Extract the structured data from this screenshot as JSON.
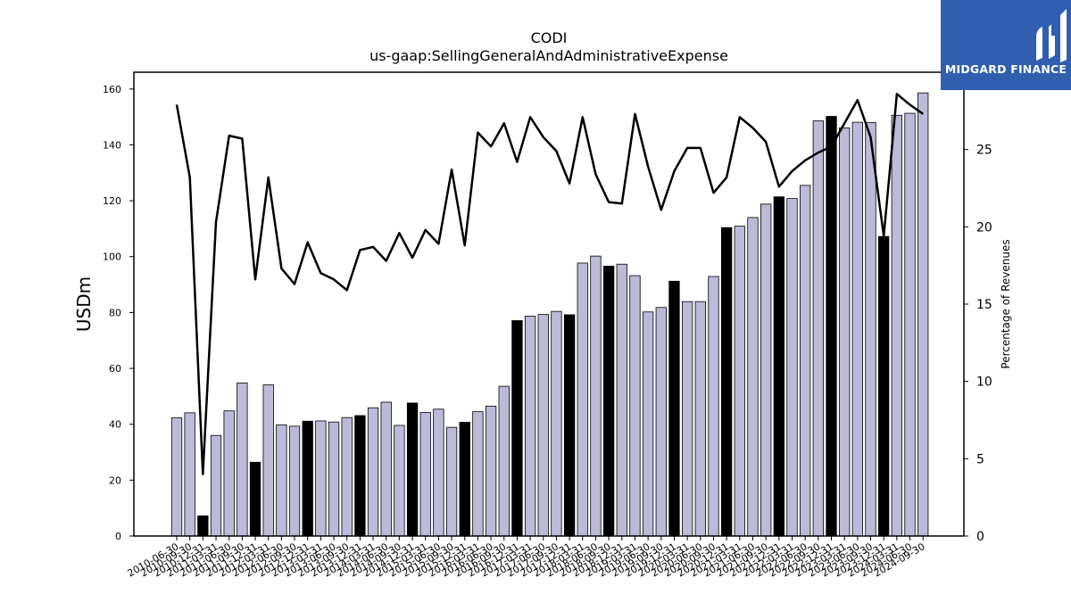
{
  "header": {
    "title": "CODI",
    "subtitle": "us-gaap:SellingGeneralAndAdministrativeExpense"
  },
  "brand": {
    "name": "MIDGARD FINANCE",
    "color": "#2f5fae",
    "icon": "midgard-logo-icon"
  },
  "colors": {
    "bar_normal": "#bcbad9",
    "bar_highlight": "#000000",
    "line": "#000000"
  },
  "chart_data": {
    "type": "bar",
    "title": "CODI",
    "subtitle": "us-gaap:SellingGeneralAndAdministrativeExpense",
    "ylabel": "USDm",
    "y2label": "Percentage of Revenues",
    "ylim": [
      0,
      166
    ],
    "y2lim": [
      0,
      30
    ],
    "yticks": [
      0,
      20,
      40,
      60,
      80,
      100,
      120,
      140,
      160
    ],
    "y2ticks": [
      0,
      5,
      10,
      15,
      20,
      25
    ],
    "categories": [
      "2010-06-30",
      "2010-09-30",
      "2010-12-31",
      "2011-03-31",
      "2011-06-30",
      "2011-09-30",
      "2011-12-31",
      "2012-03-31",
      "2012-06-30",
      "2012-09-30",
      "2012-12-31",
      "2013-03-31",
      "2013-06-30",
      "2013-09-30",
      "2013-12-31",
      "2014-03-31",
      "2014-06-30",
      "2014-09-30",
      "2014-12-31",
      "2015-03-31",
      "2015-06-30",
      "2015-09-30",
      "2015-12-31",
      "2016-03-31",
      "2016-06-30",
      "2016-09-30",
      "2016-12-31",
      "2017-03-31",
      "2017-06-30",
      "2017-09-30",
      "2017-12-31",
      "2018-03-31",
      "2018-06-30",
      "2018-09-30",
      "2018-12-31",
      "2019-03-31",
      "2019-06-30",
      "2019-09-30",
      "2019-12-31",
      "2020-03-31",
      "2020-06-30",
      "2020-09-30",
      "2020-12-31",
      "2021-03-31",
      "2021-06-30",
      "2021-09-30",
      "2021-12-31",
      "2022-03-31",
      "2022-06-30",
      "2022-09-30",
      "2022-12-31",
      "2023-03-31",
      "2023-06-30",
      "2023-09-30",
      "2023-12-31",
      "2024-03-31",
      "2024-06-30",
      "2024-09-30"
    ],
    "tick_labels": [
      "2010-06-30",
      "2010-09-30",
      "2010-12-31",
      "2011-03-31",
      "2011-06-30",
      "2011-09-30",
      "2011-12-31",
      "2012-03-31",
      "2012-06-30",
      "2012-09-30",
      "2012-12-31",
      "2013-03-31",
      "2013-06-30",
      "2013-09-30",
      "2013-12-31",
      "2014-03-31",
      "2014-06-30",
      "2014-09-30",
      "2014-12-31",
      "2015-03-31",
      "2015-06-30",
      "2015-09-30",
      "2015-12-31",
      "2016-03-31",
      "2016-06-30",
      "2016-09-30",
      "2016-12-31",
      "2017-03-31",
      "2017-06-30",
      "2017-09-30",
      "2017-12-31",
      "2018-03-31",
      "2018-06-30",
      "2018-09-30",
      "2018-12-31",
      "2019-03-31",
      "2019-06-30",
      "2019-09-30",
      "2019-12-31",
      "2020-03-31",
      "2020-06-30",
      "2020-09-30",
      "2020-12-31",
      "2021-03-31",
      "2021-06-30",
      "2021-09-30",
      "2021-12-31",
      "2022-03-31",
      "2022-06-30",
      "2022-09-30",
      "2022-12-31",
      "2023-03-31",
      "2023-06-30",
      "2023-09-30",
      "2023-12-31",
      "2024-03-31",
      "2024-06-30",
      "2024-09-30"
    ],
    "series": [
      {
        "type": "bar",
        "axis": "left",
        "values": [
          42.3,
          44.1,
          7.2,
          36.0,
          44.8,
          54.8,
          26.4,
          54.1,
          39.8,
          39.3,
          41.1,
          41.2,
          40.8,
          42.4,
          43.1,
          45.9,
          47.9,
          39.6,
          47.6,
          44.2,
          45.4,
          38.9,
          40.7,
          44.5,
          46.5,
          53.6,
          77.1,
          78.7,
          79.3,
          80.4,
          79.2,
          97.7,
          100.2,
          96.6,
          97.3,
          93.2,
          80.2,
          81.8,
          91.2,
          83.9,
          83.9,
          92.9,
          110.4,
          110.9,
          114.0,
          118.8,
          121.4,
          120.8,
          125.5,
          148.6,
          150.2,
          146.1,
          148.1,
          148.0,
          107.2,
          150.6,
          151.3,
          158.6
        ],
        "highlight": [
          false,
          false,
          true,
          false,
          false,
          false,
          true,
          false,
          false,
          false,
          true,
          false,
          false,
          false,
          true,
          false,
          false,
          false,
          true,
          false,
          false,
          false,
          true,
          false,
          false,
          false,
          true,
          false,
          false,
          false,
          true,
          false,
          false,
          true,
          false,
          false,
          false,
          false,
          true,
          false,
          false,
          false,
          true,
          false,
          false,
          false,
          true,
          false,
          false,
          false,
          true,
          false,
          false,
          false,
          true,
          false,
          false,
          false
        ]
      },
      {
        "type": "line",
        "axis": "right",
        "values": [
          27.9,
          23.2,
          4.0,
          20.3,
          25.9,
          25.7,
          16.6,
          23.2,
          17.3,
          16.3,
          19.0,
          17.0,
          16.6,
          15.9,
          18.5,
          18.7,
          17.8,
          19.6,
          18.0,
          19.8,
          18.9,
          23.7,
          18.8,
          26.1,
          25.2,
          26.7,
          24.2,
          27.1,
          25.8,
          24.9,
          22.8,
          27.1,
          23.4,
          21.6,
          21.5,
          27.3,
          23.9,
          21.1,
          23.6,
          25.1,
          25.1,
          22.2,
          23.2,
          27.1,
          26.4,
          25.5,
          22.6,
          23.6,
          24.3,
          24.8,
          25.2,
          26.7,
          28.2,
          25.8,
          19.4,
          28.6,
          27.9,
          27.3
        ]
      }
    ]
  }
}
